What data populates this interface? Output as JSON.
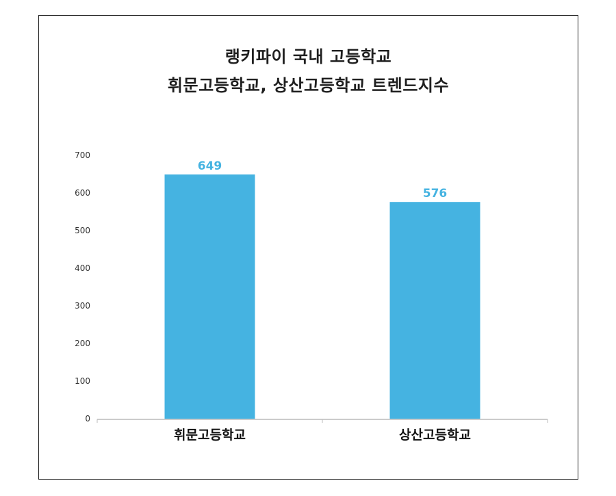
{
  "chart_data": {
    "type": "bar",
    "title_lines": [
      "랭키파이 국내 고등학교",
      "휘문고등학교, 상산고등학교 트렌드지수"
    ],
    "categories": [
      "휘문고등학교",
      "상산고등학교"
    ],
    "values": [
      649,
      576
    ],
    "data_labels": [
      "649",
      "576"
    ],
    "y_ticks": [
      "0",
      "100",
      "200",
      "300",
      "400",
      "500",
      "600",
      "700"
    ],
    "ylim": [
      0,
      700
    ],
    "xlabel": "",
    "ylabel": "",
    "grid": false,
    "legend": "none",
    "colors": {
      "bar": "#45B3E1",
      "data_label": "#45B3E1",
      "axis": "#BBBBBB"
    }
  }
}
